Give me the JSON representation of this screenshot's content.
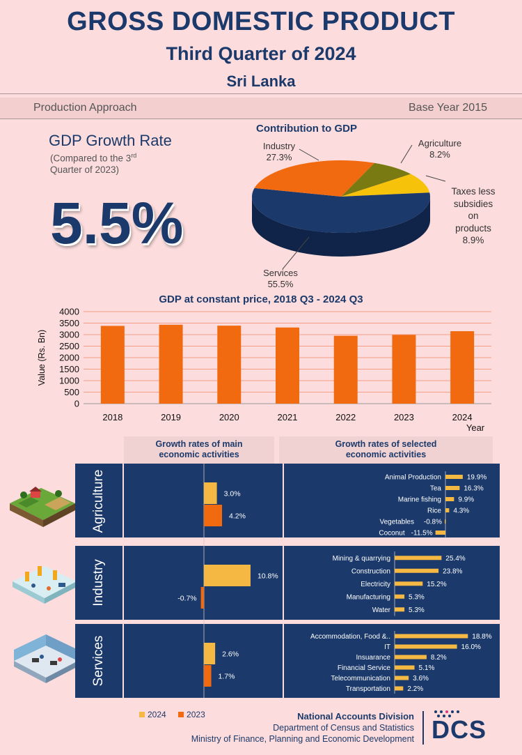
{
  "header": {
    "title": "GROSS DOMESTIC PRODUCT",
    "subtitle": "Third Quarter of 2024",
    "country": "Sri Lanka",
    "approach": "Production Approach",
    "base_year": "Base Year 2015"
  },
  "growth": {
    "title": "GDP Growth Rate",
    "note_line1": "(Compared to the 3",
    "note_sup": "rd",
    "note_line2": " Quarter of 2023)",
    "value": "5.5%"
  },
  "colors": {
    "navy": "#1b3a6b",
    "orange": "#f26a10",
    "yellow": "#f4b843",
    "olive": "#7a7a12",
    "gold": "#f6c20a",
    "background": "#fcdcdc"
  },
  "chart_data": [
    {
      "type": "pie",
      "title": "Contribution to GDP",
      "slices": [
        {
          "label": "Services",
          "value": 55.5,
          "text": "55.5%"
        },
        {
          "label": "Industry",
          "value": 27.3,
          "text": "27.3%"
        },
        {
          "label": "Agriculture",
          "value": 8.2,
          "text": "8.2%"
        },
        {
          "label": "Taxes less subsidies on products",
          "value": 8.9,
          "text": "8.9%"
        }
      ],
      "label_lines": {
        "taxes": [
          "Taxes less",
          "subsidies",
          "on",
          "products"
        ]
      }
    },
    {
      "type": "bar",
      "title": "GDP at constant price, 2018 Q3 - 2024 Q3",
      "categories": [
        "2018",
        "2019",
        "2020",
        "2021",
        "2022",
        "2023",
        "2024"
      ],
      "values": [
        3380,
        3430,
        3390,
        3310,
        2950,
        2990,
        3150
      ],
      "ylabel": "Value (Rs. Bn)",
      "xlabel": "Year",
      "ylim": [
        0,
        4000
      ],
      "yticks": [
        "0",
        "500",
        "1000",
        "1500",
        "2000",
        "2500",
        "3000",
        "3500",
        "4000"
      ]
    },
    {
      "type": "bar",
      "title": "Growth rates of main economic activities",
      "series": [
        {
          "name": "2024",
          "values": [
            3.0,
            10.8,
            2.6
          ],
          "labels": [
            "3.0%",
            "10.8%",
            "2.6%"
          ]
        },
        {
          "name": "2023",
          "values": [
            4.2,
            -0.7,
            1.7
          ],
          "labels": [
            "4.2%",
            "-0.7%",
            "1.7%"
          ]
        }
      ],
      "categories": [
        "Agriculture",
        "Industry",
        "Services"
      ]
    },
    {
      "type": "bar",
      "title": "Growth rates of selected economic activities",
      "groups": [
        {
          "sector": "Agriculture",
          "items": [
            {
              "label": "Animal Production",
              "value": 19.9,
              "text": "19.9%"
            },
            {
              "label": "Tea",
              "value": 16.3,
              "text": "16.3%"
            },
            {
              "label": "Marine fishing",
              "value": 9.9,
              "text": "9.9%"
            },
            {
              "label": "Rice",
              "value": 4.3,
              "text": "4.3%"
            },
            {
              "label": "Vegetables",
              "value": -0.8,
              "text": "-0.8%"
            },
            {
              "label": "Coconut",
              "value": -11.5,
              "text": "-11.5%"
            }
          ]
        },
        {
          "sector": "Industry",
          "items": [
            {
              "label": "Mining & quarrying",
              "value": 25.4,
              "text": "25.4%"
            },
            {
              "label": "Construction",
              "value": 23.8,
              "text": "23.8%"
            },
            {
              "label": "Electricity",
              "value": 15.2,
              "text": "15.2%"
            },
            {
              "label": "Manufacturing",
              "value": 5.3,
              "text": "5.3%"
            },
            {
              "label": "Water",
              "value": 5.3,
              "text": "5.3%"
            }
          ]
        },
        {
          "sector": "Services",
          "items": [
            {
              "label": "Accommodation, Food &..",
              "value": 18.8,
              "text": "18.8%"
            },
            {
              "label": "IT",
              "value": 16.0,
              "text": "16.0%"
            },
            {
              "label": "Insuarance",
              "value": 8.2,
              "text": "8.2%"
            },
            {
              "label": "Financial Service",
              "value": 5.1,
              "text": "5.1%"
            },
            {
              "label": "Telecommunication",
              "value": 3.6,
              "text": "3.6%"
            },
            {
              "label": "Transportation",
              "value": 2.2,
              "text": "2.2%"
            }
          ]
        }
      ]
    }
  ],
  "section_headers": {
    "main": "Growth rates of main economic activities",
    "selected": "Growth rates of selected economic activities"
  },
  "legend": {
    "y2024": "2024",
    "y2023": "2023"
  },
  "footer": {
    "division": "National Accounts Division",
    "department": "Department of Census and Statistics",
    "ministry": "Ministry of Finance, Planning and Economic Development",
    "logo_text": "DCS"
  }
}
